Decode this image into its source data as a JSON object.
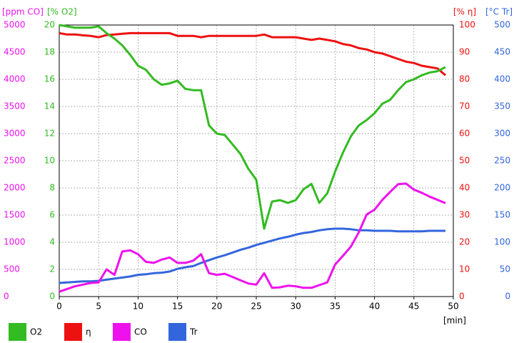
{
  "chart_data": {
    "type": "line",
    "x": [
      0,
      1,
      2,
      3,
      4,
      5,
      6,
      7,
      8,
      9,
      10,
      11,
      12,
      13,
      14,
      15,
      16,
      17,
      18,
      19,
      20,
      21,
      22,
      23,
      24,
      25,
      26,
      27,
      28,
      29,
      30,
      31,
      32,
      33,
      34,
      35,
      36,
      37,
      38,
      39,
      40,
      41,
      42,
      43,
      44,
      45,
      46,
      47,
      48,
      49
    ],
    "xlim": [
      0,
      50
    ],
    "xticks": [
      0,
      5,
      10,
      15,
      20,
      25,
      30,
      35,
      40,
      45,
      50
    ],
    "xlabel": "[min]",
    "ylabel": "[% O2]",
    "ylim": [
      0,
      20
    ],
    "yticks": [
      0,
      2,
      4,
      6,
      8,
      10,
      12,
      14,
      16,
      18,
      20
    ],
    "y2label": "[% η]",
    "y2lim": [
      0,
      100
    ],
    "y2ticks": [
      0,
      10,
      20,
      30,
      40,
      50,
      60,
      70,
      80,
      90,
      100
    ],
    "y3label": "[ppm CO]",
    "y3lim": [
      0,
      5000
    ],
    "y3ticks": [
      0,
      500,
      1000,
      1500,
      2000,
      2500,
      3000,
      3500,
      4000,
      4500,
      5000
    ],
    "y4label": "[°C Tr]",
    "y4lim": [
      0,
      500
    ],
    "y4ticks": [
      0,
      50,
      100,
      150,
      200,
      250,
      300,
      350,
      400,
      450,
      500
    ],
    "grid": true,
    "legend": "bottom",
    "series": [
      {
        "name": "O2",
        "color": "#33bb22",
        "axis": "y",
        "values": [
          20.0,
          19.9,
          19.8,
          19.8,
          19.8,
          19.9,
          19.4,
          19.0,
          18.5,
          17.8,
          17.0,
          16.7,
          16.0,
          15.6,
          15.7,
          15.9,
          15.3,
          15.2,
          15.2,
          12.6,
          12.0,
          11.9,
          11.2,
          10.5,
          9.4,
          8.6,
          5.0,
          7.0,
          7.1,
          6.9,
          7.1,
          7.9,
          8.3,
          6.9,
          7.6,
          9.2,
          10.6,
          11.8,
          12.6,
          13.0,
          13.5,
          14.2,
          14.5,
          15.2,
          15.8,
          16.0,
          16.3,
          16.5,
          16.6,
          16.9
        ]
      },
      {
        "name": "η",
        "color": "#ee1111",
        "axis": "y2",
        "values": [
          97,
          96.5,
          96.5,
          96.2,
          96,
          95.5,
          96.3,
          96.5,
          96.8,
          97,
          97,
          97,
          97,
          97,
          97,
          96,
          96,
          96,
          95.5,
          96,
          96,
          96,
          96,
          96,
          96,
          96,
          96.5,
          95.5,
          95.5,
          95.5,
          95.5,
          95,
          94.5,
          95,
          94.5,
          94,
          93,
          92.5,
          91.5,
          91,
          90,
          89.5,
          88.5,
          87.5,
          86.5,
          86,
          85,
          84.5,
          84,
          81.5
        ]
      },
      {
        "name": "CO",
        "color": "#ee11ee",
        "axis": "y3",
        "values": [
          90,
          140,
          190,
          220,
          250,
          260,
          500,
          400,
          830,
          850,
          780,
          640,
          620,
          680,
          720,
          620,
          620,
          660,
          780,
          430,
          400,
          420,
          360,
          300,
          240,
          220,
          430,
          160,
          170,
          200,
          190,
          160,
          160,
          210,
          260,
          590,
          750,
          920,
          1180,
          1510,
          1600,
          1780,
          1930,
          2070,
          2080,
          1970,
          1910,
          1840,
          1780,
          1720
        ]
      },
      {
        "name": "Tr",
        "color": "#3366dd",
        "axis": "y4",
        "values": [
          25,
          26,
          27,
          28,
          28,
          29,
          31,
          33,
          35,
          37,
          40,
          41,
          43,
          44,
          46,
          51,
          54,
          56,
          62,
          67,
          72,
          76,
          81,
          86,
          90,
          95,
          99,
          103,
          107,
          110,
          114,
          117,
          119,
          122,
          124,
          125,
          125,
          124,
          122,
          122,
          121,
          121,
          121,
          120,
          120,
          120,
          120,
          121,
          121,
          121
        ]
      }
    ]
  }
}
